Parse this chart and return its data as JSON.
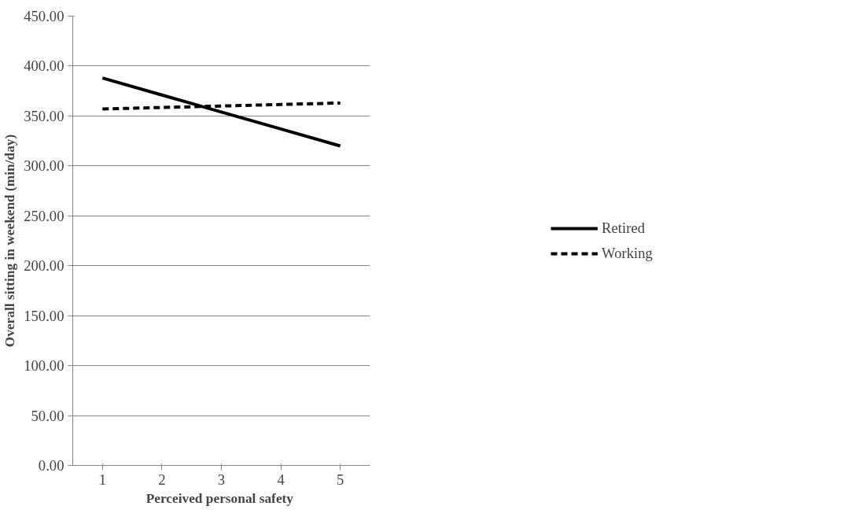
{
  "chart_data": {
    "type": "line",
    "xlabel": "Perceived  personal safety",
    "ylabel": "Overall sitting in weekend (min/day)",
    "categories": [
      "1",
      "2",
      "3",
      "4",
      "5"
    ],
    "series": [
      {
        "name": "Retired",
        "color": "#000000",
        "line_style": "solid",
        "values": [
          388,
          371,
          354,
          337,
          320
        ]
      },
      {
        "name": "Working",
        "color": "#000000",
        "line_style": "dashed",
        "values": [
          357,
          358.5,
          360,
          361.5,
          363
        ]
      }
    ],
    "ylim": [
      0,
      450
    ],
    "yticks": [
      {
        "value": 0,
        "label": "0.00"
      },
      {
        "value": 50,
        "label": "50.00"
      },
      {
        "value": 100,
        "label": "100.00"
      },
      {
        "value": 150,
        "label": "150.00"
      },
      {
        "value": 200,
        "label": "200.00"
      },
      {
        "value": 250,
        "label": "250.00"
      },
      {
        "value": 300,
        "label": "300.00"
      },
      {
        "value": 350,
        "label": "350.00"
      },
      {
        "value": 400,
        "label": "400.00"
      },
      {
        "value": 450,
        "label": "450.00"
      }
    ],
    "grid": "y",
    "legend": "right",
    "marker": "none"
  }
}
